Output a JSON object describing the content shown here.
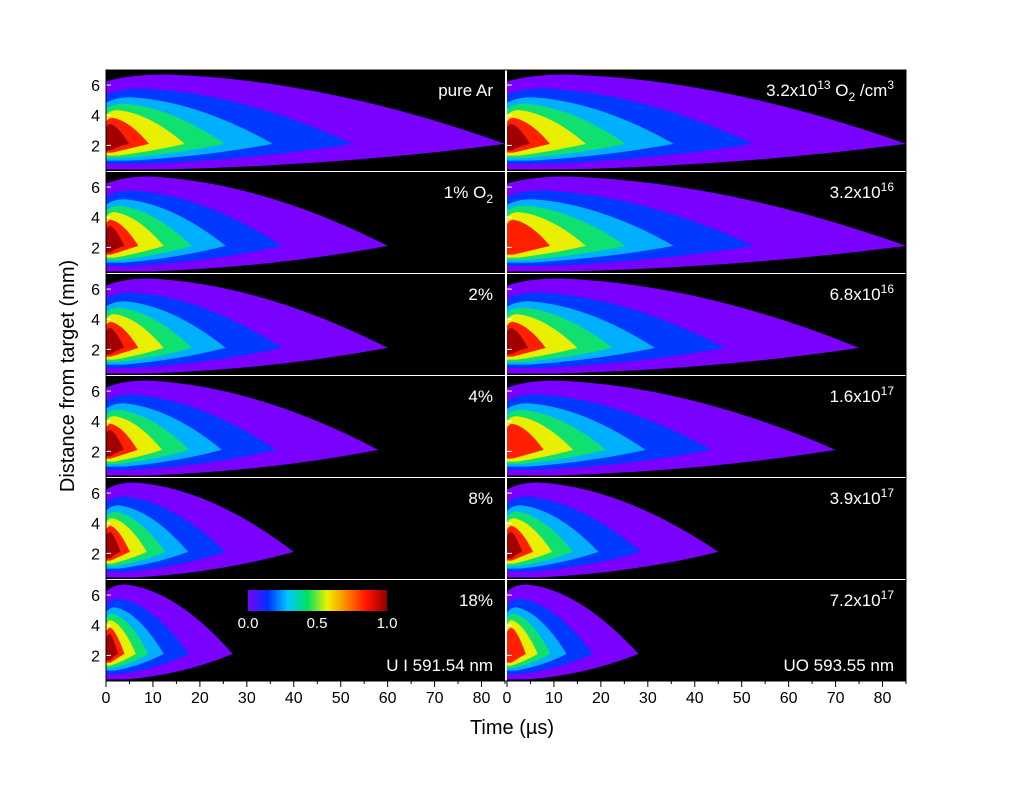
{
  "chart_data": {
    "type": "heatmap",
    "xlabel": "Time (µs)",
    "ylabel": "Distance from target (mm)",
    "xlim": [
      0,
      85
    ],
    "ylim": [
      0.3,
      7
    ],
    "xticks": [
      "0",
      "10",
      "20",
      "30",
      "40",
      "50",
      "60",
      "70",
      "80"
    ],
    "yticks": [
      "2",
      "4",
      "6"
    ],
    "colorbar": {
      "min": 0.0,
      "max": 1.0,
      "tick_labels": [
        "0.0",
        "0.5",
        "1.0"
      ],
      "colors": [
        "#7a00ff",
        "#0030ff",
        "#00c8ff",
        "#00e060",
        "#f0f000",
        "#ff8000",
        "#ff1000",
        "#900000"
      ]
    },
    "columns": [
      {
        "line_label": "U I 591.54 nm",
        "panels": [
          {
            "label": [
              {
                "t": "pure Ar"
              }
            ],
            "plume_extent_us": 85,
            "peak_level": 7
          },
          {
            "label": [
              {
                "t": "1% O"
              },
              {
                "t": "2",
                "s": "sub"
              }
            ],
            "plume_extent_us": 60,
            "peak_level": 6
          },
          {
            "label": [
              {
                "t": "2%"
              }
            ],
            "plume_extent_us": 60,
            "peak_level": 6
          },
          {
            "label": [
              {
                "t": "4%"
              }
            ],
            "plume_extent_us": 58,
            "peak_level": 6
          },
          {
            "label": [
              {
                "t": "8%"
              }
            ],
            "plume_extent_us": 40,
            "peak_level": 6
          },
          {
            "label": [
              {
                "t": "18%"
              }
            ],
            "plume_extent_us": 27,
            "peak_level": 6
          }
        ]
      },
      {
        "line_label": "UO 593.55 nm",
        "panels": [
          {
            "label": [
              {
                "t": "3.2x10"
              },
              {
                "t": "13",
                "s": "sup"
              },
              {
                "t": " O"
              },
              {
                "t": "2",
                "s": "sub"
              },
              {
                "t": " /cm"
              },
              {
                "t": "3",
                "s": "sup"
              }
            ],
            "plume_extent_us": 85,
            "peak_level": 6
          },
          {
            "label": [
              {
                "t": "3.2x10"
              },
              {
                "t": "16",
                "s": "sup"
              }
            ],
            "plume_extent_us": 85,
            "peak_level": 5
          },
          {
            "label": [
              {
                "t": "6.8x10"
              },
              {
                "t": "16",
                "s": "sup"
              }
            ],
            "plume_extent_us": 75,
            "peak_level": 6
          },
          {
            "label": [
              {
                "t": "1.6x10"
              },
              {
                "t": "17",
                "s": "sup"
              }
            ],
            "plume_extent_us": 70,
            "peak_level": 5
          },
          {
            "label": [
              {
                "t": "3.9x10"
              },
              {
                "t": "17",
                "s": "sup"
              }
            ],
            "plume_extent_us": 45,
            "peak_level": 6
          },
          {
            "label": [
              {
                "t": "7.2x10"
              },
              {
                "t": "17",
                "s": "sup"
              }
            ],
            "plume_extent_us": 28,
            "peak_level": 5
          }
        ]
      }
    ]
  }
}
